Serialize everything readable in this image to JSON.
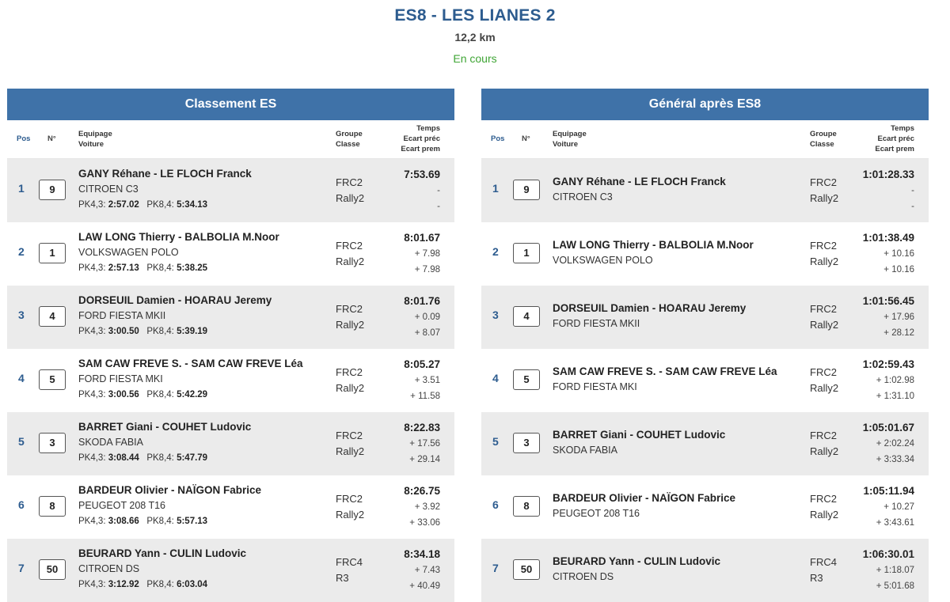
{
  "stage": {
    "title": "ES8 - LES LIANES 2",
    "distance": "12,2 km",
    "status": "En cours"
  },
  "colors": {
    "accent": "#3f72a8",
    "status": "#3fa535"
  },
  "panels": [
    {
      "title": "Classement ES",
      "headers": {
        "pos": "Pos",
        "num": "N°",
        "eq1": "Equipage",
        "eq2": "Voiture",
        "grp1": "Groupe",
        "grp2": "Classe",
        "t1": "Temps",
        "t2": "Ecart préc",
        "t3": "Ecart prem"
      },
      "rows": [
        {
          "pos": "1",
          "num": "9",
          "team": "GANY Réhane - LE FLOCH Franck",
          "car": "CITROEN C3",
          "pk1l": "PK4,3:",
          "pk1v": "2:57.02",
          "pk2l": "PK8,4:",
          "pk2v": "5:34.13",
          "grp": "FRC2",
          "cls": "Rally2",
          "t1": "7:53.69",
          "t2": "-",
          "t3": "-"
        },
        {
          "pos": "2",
          "num": "1",
          "team": "LAW LONG Thierry - BALBOLIA M.Noor",
          "car": "VOLKSWAGEN POLO",
          "pk1l": "PK4,3:",
          "pk1v": "2:57.13",
          "pk2l": "PK8,4:",
          "pk2v": "5:38.25",
          "grp": "FRC2",
          "cls": "Rally2",
          "t1": "8:01.67",
          "t2": "+ 7.98",
          "t3": "+ 7.98"
        },
        {
          "pos": "3",
          "num": "4",
          "team": "DORSEUIL Damien - HOARAU Jeremy",
          "car": "FORD FIESTA MKII",
          "pk1l": "PK4,3:",
          "pk1v": "3:00.50",
          "pk2l": "PK8,4:",
          "pk2v": "5:39.19",
          "grp": "FRC2",
          "cls": "Rally2",
          "t1": "8:01.76",
          "t2": "+ 0.09",
          "t3": "+ 8.07"
        },
        {
          "pos": "4",
          "num": "5",
          "team": "SAM CAW FREVE S. - SAM CAW FREVE Léa",
          "car": "FORD FIESTA MKI",
          "pk1l": "PK4,3:",
          "pk1v": "3:00.56",
          "pk2l": "PK8,4:",
          "pk2v": "5:42.29",
          "grp": "FRC2",
          "cls": "Rally2",
          "t1": "8:05.27",
          "t2": "+ 3.51",
          "t3": "+ 11.58"
        },
        {
          "pos": "5",
          "num": "3",
          "team": "BARRET Giani - COUHET Ludovic",
          "car": "SKODA FABIA",
          "pk1l": "PK4,3:",
          "pk1v": "3:08.44",
          "pk2l": "PK8,4:",
          "pk2v": "5:47.79",
          "grp": "FRC2",
          "cls": "Rally2",
          "t1": "8:22.83",
          "t2": "+ 17.56",
          "t3": "+ 29.14"
        },
        {
          "pos": "6",
          "num": "8",
          "team": "BARDEUR Olivier - NAÏGON Fabrice",
          "car": "PEUGEOT 208 T16",
          "pk1l": "PK4,3:",
          "pk1v": "3:08.66",
          "pk2l": "PK8,4:",
          "pk2v": "5:57.13",
          "grp": "FRC2",
          "cls": "Rally2",
          "t1": "8:26.75",
          "t2": "+ 3.92",
          "t3": "+ 33.06"
        },
        {
          "pos": "7",
          "num": "50",
          "team": "BEURARD Yann - CULIN Ludovic",
          "car": "CITROEN DS",
          "pk1l": "PK4,3:",
          "pk1v": "3:12.92",
          "pk2l": "PK8,4:",
          "pk2v": "6:03.04",
          "grp": "FRC4",
          "cls": "R3",
          "t1": "8:34.18",
          "t2": "+ 7.43",
          "t3": "+ 40.49"
        }
      ]
    },
    {
      "title": "Général après ES8",
      "headers": {
        "pos": "Pos",
        "num": "N°",
        "eq1": "Equipage",
        "eq2": "Voiture",
        "grp1": "Groupe",
        "grp2": "Classe",
        "t1": "Temps",
        "t2": "Ecart préc",
        "t3": "Ecart prem"
      },
      "rows": [
        {
          "pos": "1",
          "num": "9",
          "team": "GANY Réhane - LE FLOCH Franck",
          "car": "CITROEN C3",
          "grp": "FRC2",
          "cls": "Rally2",
          "t1": "1:01:28.33",
          "t2": "-",
          "t3": "-"
        },
        {
          "pos": "2",
          "num": "1",
          "team": "LAW LONG Thierry - BALBOLIA M.Noor",
          "car": "VOLKSWAGEN POLO",
          "grp": "FRC2",
          "cls": "Rally2",
          "t1": "1:01:38.49",
          "t2": "+ 10.16",
          "t3": "+ 10.16"
        },
        {
          "pos": "3",
          "num": "4",
          "team": "DORSEUIL Damien - HOARAU Jeremy",
          "car": "FORD FIESTA MKII",
          "grp": "FRC2",
          "cls": "Rally2",
          "t1": "1:01:56.45",
          "t2": "+ 17.96",
          "t3": "+ 28.12"
        },
        {
          "pos": "4",
          "num": "5",
          "team": "SAM CAW FREVE S. - SAM CAW FREVE Léa",
          "car": "FORD FIESTA MKI",
          "grp": "FRC2",
          "cls": "Rally2",
          "t1": "1:02:59.43",
          "t2": "+ 1:02.98",
          "t3": "+ 1:31.10"
        },
        {
          "pos": "5",
          "num": "3",
          "team": "BARRET Giani - COUHET Ludovic",
          "car": "SKODA FABIA",
          "grp": "FRC2",
          "cls": "Rally2",
          "t1": "1:05:01.67",
          "t2": "+ 2:02.24",
          "t3": "+ 3:33.34"
        },
        {
          "pos": "6",
          "num": "8",
          "team": "BARDEUR Olivier - NAÏGON Fabrice",
          "car": "PEUGEOT 208 T16",
          "grp": "FRC2",
          "cls": "Rally2",
          "t1": "1:05:11.94",
          "t2": "+ 10.27",
          "t3": "+ 3:43.61"
        },
        {
          "pos": "7",
          "num": "50",
          "team": "BEURARD Yann - CULIN Ludovic",
          "car": "CITROEN DS",
          "grp": "FRC4",
          "cls": "R3",
          "t1": "1:06:30.01",
          "t2": "+ 1:18.07",
          "t3": "+ 5:01.68"
        }
      ]
    }
  ]
}
